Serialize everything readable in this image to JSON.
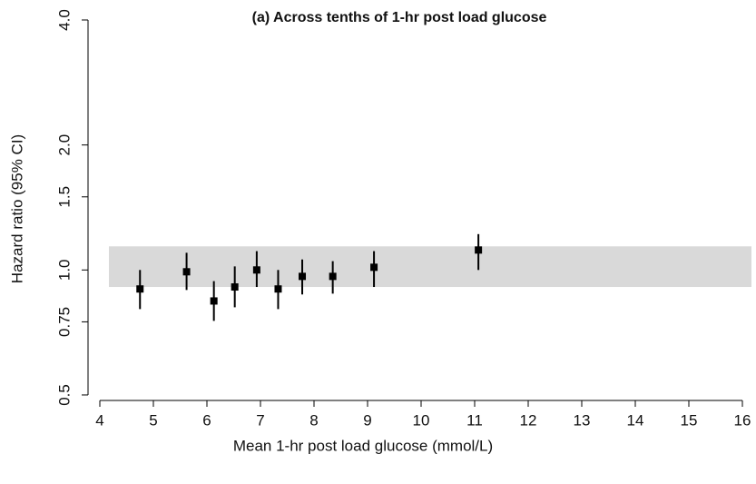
{
  "chart_data": {
    "type": "scatter",
    "title": "(a) Across tenths of 1-hr post load glucose",
    "x_label": "Mean 1-hr post load glucose (mmol/L)",
    "y_label": "Hazard ratio (95% CI)",
    "log_y": true,
    "xlim": [
      4,
      16
    ],
    "ylim": [
      0.485,
      4.0
    ],
    "xticks": [
      4,
      5,
      6,
      7,
      8,
      9,
      10,
      11,
      12,
      13,
      14,
      15,
      16
    ],
    "yticks": [
      0.5,
      0.75,
      {
        "value": 1,
        "label": "1.0"
      },
      1.5,
      {
        "value": 2,
        "label": "2.0"
      },
      {
        "value": 4,
        "label": "4.0"
      }
    ],
    "band": [
      0.91,
      1.14
    ],
    "band_color": "#d0d0d0",
    "series": [
      {
        "color": "#000000",
        "x": [
          4.75,
          5.62,
          6.13,
          6.52,
          6.93,
          7.33,
          7.78,
          8.35,
          9.12,
          11.07
        ],
        "values": [
          0.9,
          0.99,
          0.842,
          0.91,
          1.0,
          0.9,
          0.965,
          0.965,
          1.015,
          1.117
        ],
        "lower": [
          0.805,
          0.895,
          0.754,
          0.813,
          0.91,
          0.805,
          0.873,
          0.877,
          0.91,
          1.0
        ],
        "upper": [
          1.0,
          1.1,
          0.94,
          1.02,
          1.11,
          1.0,
          1.06,
          1.05,
          1.11,
          1.22
        ]
      }
    ]
  }
}
